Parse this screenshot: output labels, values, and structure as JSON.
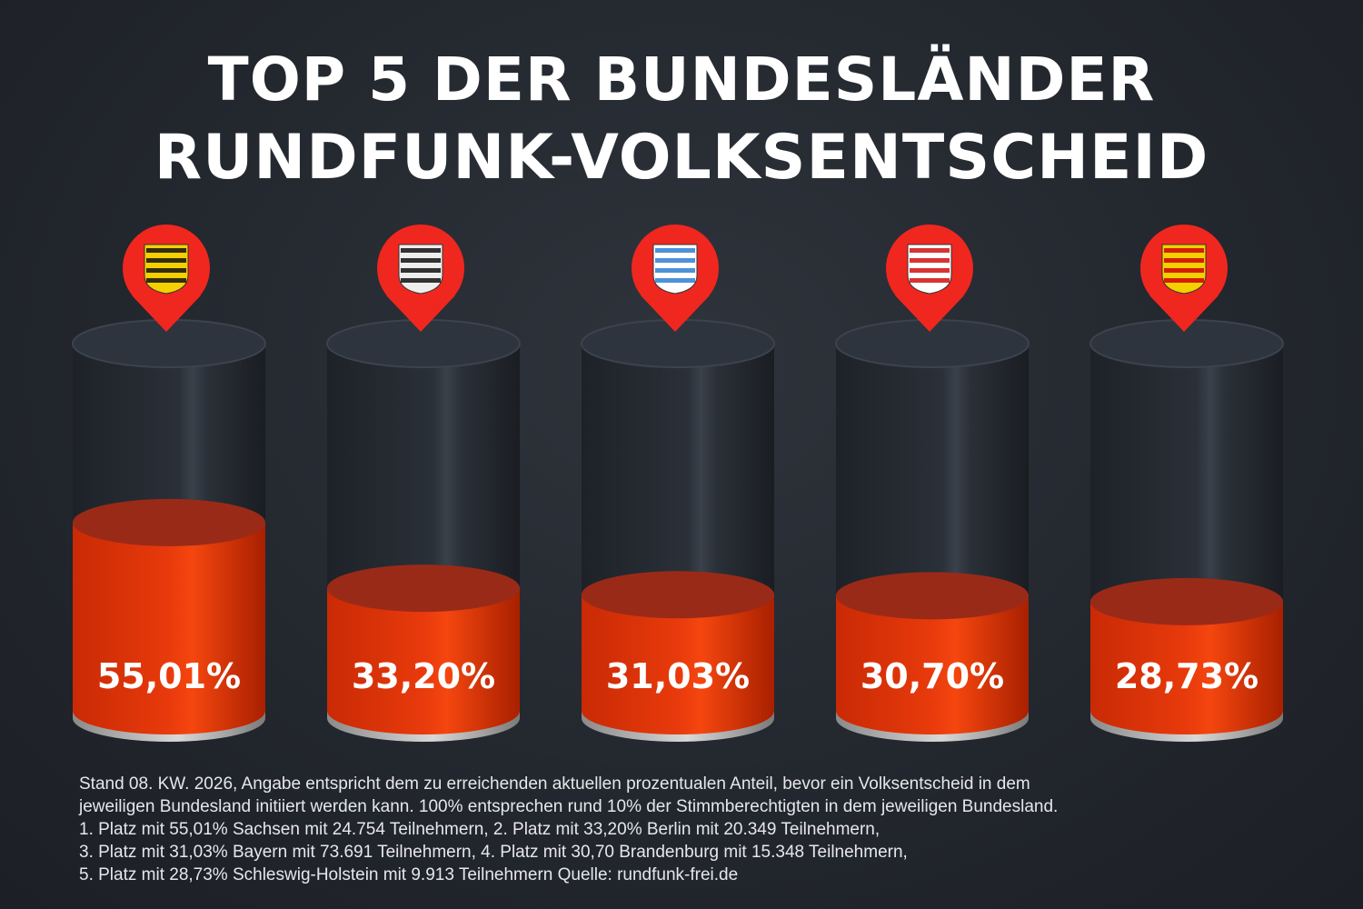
{
  "title_line1": "TOP 5  DER BUNDESLÄNDER",
  "title_line2": "RUNDFUNK-VOLKSENTSCHEID",
  "chart_data": {
    "type": "bar",
    "style": "3d-cylinder",
    "categories": [
      "Sachsen",
      "Berlin",
      "Bayern",
      "Brandenburg",
      "Schleswig-Holstein"
    ],
    "values": [
      55.01,
      33.2,
      31.03,
      30.7,
      28.73
    ],
    "labels": [
      "55,01%",
      "33,20%",
      "31,03%",
      "30,70%",
      "28,73%"
    ],
    "icons": [
      "coat-of-arms-sachsen",
      "coat-of-arms-berlin",
      "coat-of-arms-bayern",
      "coat-of-arms-brandenburg",
      "coat-of-arms-schleswig-holstein"
    ],
    "ylim": [
      0,
      100
    ],
    "colors": {
      "fill": "#e83a0c",
      "pin": "#f0271f",
      "background": "#23272e"
    }
  },
  "notes": [
    "Stand 08. KW. 2026, Angabe entspricht dem zu erreichenden aktuellen prozentualen Anteil, bevor ein Volksentscheid in dem",
    "jeweiligen Bundesland initiiert werden kann. 100% entsprechen rund 10% der Stimmberechtigten in dem jeweiligen Bundesland.",
    "1. Platz mit 55,01% Sachsen mit 24.754 Teilnehmern, 2. Platz mit 33,20% Berlin mit 20.349 Teilnehmern,",
    "3. Platz mit 31,03% Bayern mit 73.691 Teilnehmern, 4. Platz mit 30,70 Brandenburg mit 15.348 Teilnehmern,",
    "5. Platz mit 28,73% Schleswig-Holstein mit 9.913 Teilnehmern Quelle: rundfunk-frei.de"
  ]
}
